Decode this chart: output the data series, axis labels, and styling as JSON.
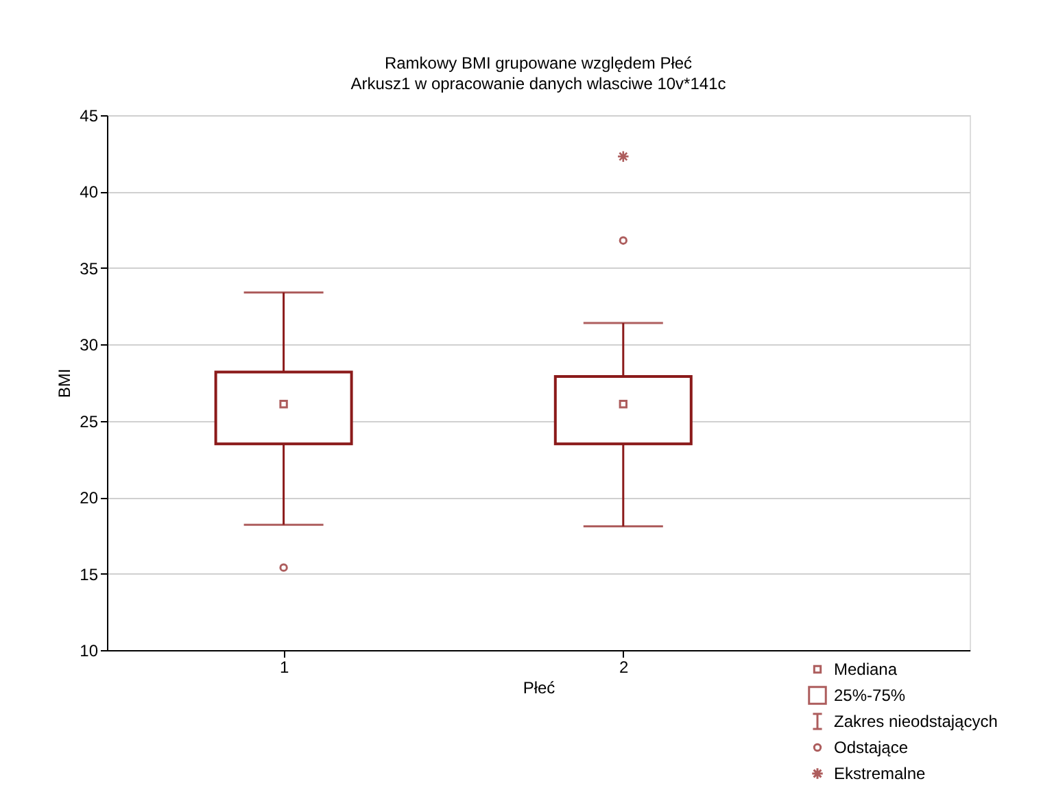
{
  "chart_data": {
    "type": "box",
    "title": "Ramkowy   BMI grupowane względem Płeć",
    "subtitle": "Arkusz1 w opracowanie danych wlasciwe 10v*141c",
    "xlabel": "Płeć",
    "ylabel": "BMI",
    "categories": [
      "1",
      "2"
    ],
    "ylim": [
      10,
      45
    ],
    "yticks": [
      10,
      15,
      20,
      25,
      30,
      35,
      40,
      45
    ],
    "grid": "y",
    "legend": "bottom right",
    "series": [
      {
        "color": "#8b1a1a",
        "boxes": [
          {
            "low": 18.2,
            "q1": 23.5,
            "median": 26.1,
            "q3": 28.2,
            "high": 33.4,
            "outliers": [
              15.4
            ]
          },
          {
            "low": 18.1,
            "q1": 23.5,
            "median": 26.1,
            "q3": 27.9,
            "high": 31.4,
            "outliers": [
              36.8
            ]
          }
        ]
      },
      {
        "type": "scatter",
        "name": "Ekstremalne",
        "color": "#8b1a1a",
        "marker": "cross",
        "x": [
          "2"
        ],
        "values": [
          42.3
        ]
      }
    ],
    "annotations": [
      "Mediana",
      "25%-75%",
      "Zakres nieodstających",
      "Odstające"
    ]
  }
}
